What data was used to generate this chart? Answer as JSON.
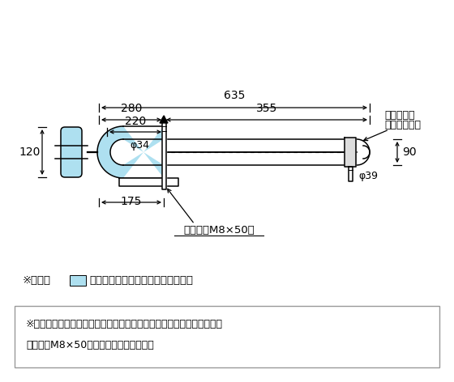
{
  "bg_color": "#ffffff",
  "light_blue": "#aee0f0",
  "black": "#000000",
  "gray": "#888888",
  "note1_pre": "※図面の",
  "note1_post": "部は樹脰被覆部分を示しています。",
  "note2_line1": "※人工大理石カウンター用手すりを取り付けの際は必ず同梱の固定金具",
  "note2_line2": "（ボルトM8×50）を使用してください。",
  "label_635": "635",
  "label_280": "280",
  "label_355": "355",
  "label_220": "220",
  "label_175": "175",
  "label_120": "120",
  "label_90": "90",
  "label_phi34": "φ34",
  "label_phi39": "φ39",
  "label_counter1": "人工大理石",
  "label_counter2": "カウンター",
  "label_bolt": "ボルト（M8×50）"
}
